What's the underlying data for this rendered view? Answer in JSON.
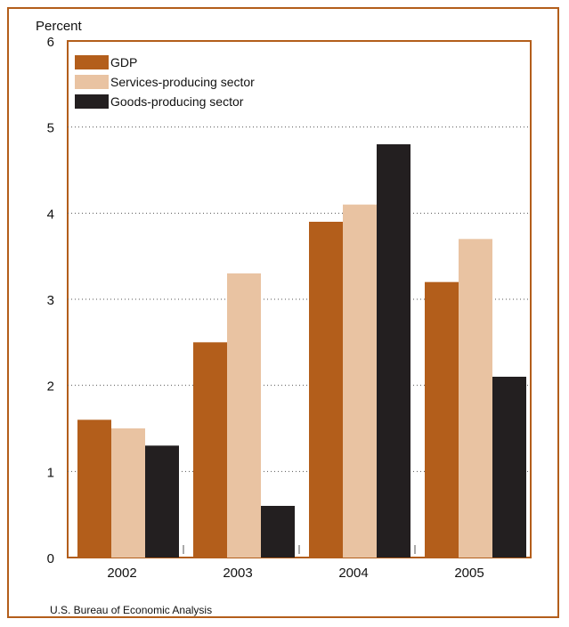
{
  "colors": {
    "frame": "#b35e1b",
    "gdp": "#b35e1b",
    "services": "#e9c3a2",
    "goods": "#231f20",
    "grid": "#555555"
  },
  "chart_data": {
    "type": "bar",
    "title": "",
    "ylabel": "Percent",
    "xlabel": "",
    "ylim": [
      0,
      6
    ],
    "yticks": [
      "0",
      "1",
      "2",
      "3",
      "4",
      "5",
      "6"
    ],
    "categories": [
      "2002",
      "2003",
      "2004",
      "2005"
    ],
    "grid": "dotted horizontal",
    "legend_position": "top-left",
    "series": [
      {
        "name": "GDP",
        "values": [
          1.6,
          2.5,
          3.9,
          3.2
        ]
      },
      {
        "name": "Services-producing sector",
        "values": [
          1.5,
          3.3,
          4.1,
          3.7
        ]
      },
      {
        "name": "Goods-producing sector",
        "values": [
          1.3,
          0.6,
          4.8,
          2.1
        ]
      }
    ]
  },
  "source": "U.S. Bureau of Economic Analysis"
}
